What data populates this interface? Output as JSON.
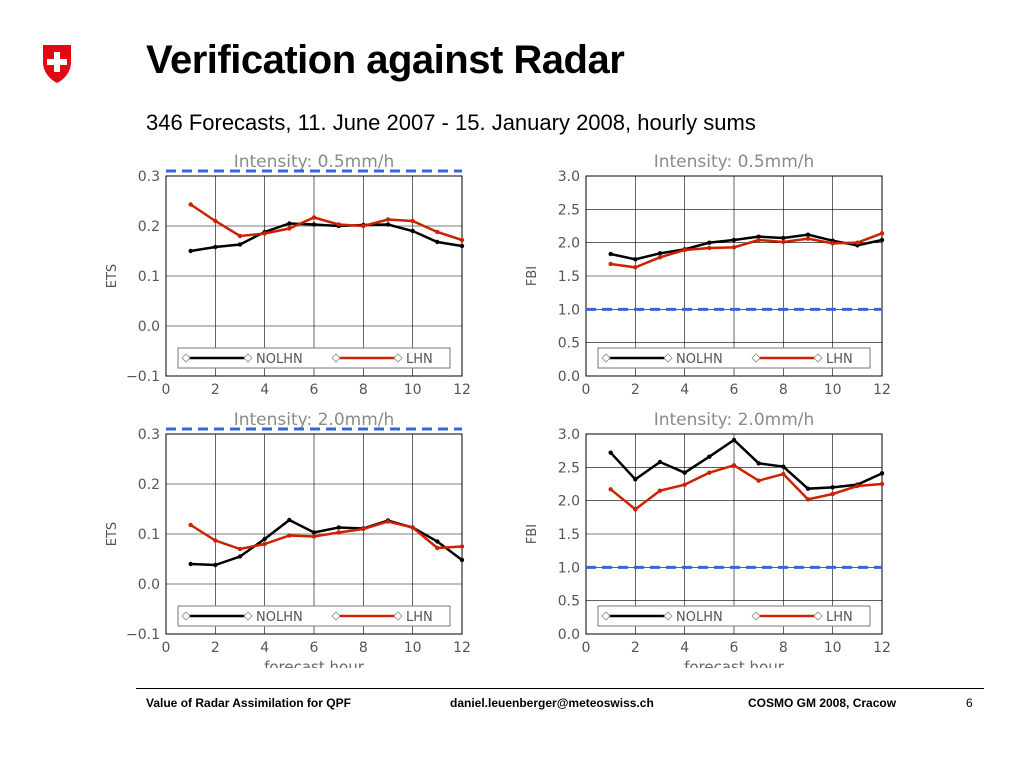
{
  "slide": {
    "title": "Verification against Radar",
    "subtitle": "346 Forecasts, 11. June 2007 - 15. January 2008, hourly sums",
    "logo_icon": "swiss-cross-shield-icon",
    "logo_color": "#e30613"
  },
  "footer": {
    "left": "Value of Radar Assimilation for QPF",
    "middle": "daniel.leuenberger@meteoswiss.ch",
    "right": "COSMO GM 2008, Cracow",
    "page": "6"
  },
  "colors": {
    "nolhn": "#000000",
    "lhn": "#cc2200",
    "reference": "#3366dd",
    "grid": "#000000"
  },
  "chart_data": [
    {
      "type": "line",
      "title": "Intensity: 0.5mm/h",
      "xlabel": "",
      "ylabel": "ETS",
      "xlim": [
        0,
        12
      ],
      "ylim": [
        -0.1,
        0.3
      ],
      "xticks": [
        0,
        2,
        4,
        6,
        8,
        10,
        12
      ],
      "yticks": [
        -0.1,
        0.0,
        0.1,
        0.2,
        0.3
      ],
      "ytick_labels": [
        "−0.1",
        "0.0",
        "0.1",
        "0.2",
        "0.3"
      ],
      "grid": true,
      "reference_line": 0.31,
      "legend": "bottom",
      "x": [
        1,
        2,
        3,
        4,
        5,
        6,
        7,
        8,
        9,
        10,
        11,
        12
      ],
      "series": [
        {
          "name": "NOLHN",
          "values": [
            0.15,
            0.158,
            0.163,
            0.188,
            0.205,
            0.203,
            0.2,
            0.202,
            0.203,
            0.19,
            0.168,
            0.16
          ]
        },
        {
          "name": "LHN",
          "values": [
            0.243,
            0.21,
            0.18,
            0.185,
            0.195,
            0.217,
            0.203,
            0.2,
            0.213,
            0.21,
            0.188,
            0.172
          ]
        }
      ]
    },
    {
      "type": "line",
      "title": "Intensity: 0.5mm/h",
      "xlabel": "",
      "ylabel": "FBI",
      "xlim": [
        0,
        12
      ],
      "ylim": [
        0.0,
        3.0
      ],
      "xticks": [
        0,
        2,
        4,
        6,
        8,
        10,
        12
      ],
      "yticks": [
        0.0,
        0.5,
        1.0,
        1.5,
        2.0,
        2.5,
        3.0
      ],
      "ytick_labels": [
        "0.0",
        "0.5",
        "1.0",
        "1.5",
        "2.0",
        "2.5",
        "3.0"
      ],
      "grid": true,
      "reference_line": 1.0,
      "legend": "bottom",
      "x": [
        1,
        2,
        3,
        4,
        5,
        6,
        7,
        8,
        9,
        10,
        11,
        12
      ],
      "series": [
        {
          "name": "NOLHN",
          "values": [
            1.83,
            1.75,
            1.84,
            1.9,
            2.0,
            2.04,
            2.09,
            2.07,
            2.12,
            2.03,
            1.96,
            2.04
          ]
        },
        {
          "name": "LHN",
          "values": [
            1.68,
            1.63,
            1.78,
            1.89,
            1.92,
            1.93,
            2.04,
            2.01,
            2.06,
            1.99,
            2.0,
            2.14
          ]
        }
      ]
    },
    {
      "type": "line",
      "title": "Intensity: 2.0mm/h",
      "xlabel": "forecast hour",
      "ylabel": "ETS",
      "xlim": [
        0,
        12
      ],
      "ylim": [
        -0.1,
        0.3
      ],
      "xticks": [
        0,
        2,
        4,
        6,
        8,
        10,
        12
      ],
      "yticks": [
        -0.1,
        0.0,
        0.1,
        0.2,
        0.3
      ],
      "ytick_labels": [
        "−0.1",
        "0.0",
        "0.1",
        "0.2",
        "0.3"
      ],
      "grid": true,
      "reference_line": 0.31,
      "legend": "bottom",
      "x": [
        1,
        2,
        3,
        4,
        5,
        6,
        7,
        8,
        9,
        10,
        11,
        12
      ],
      "series": [
        {
          "name": "NOLHN",
          "values": [
            0.04,
            0.038,
            0.055,
            0.09,
            0.128,
            0.103,
            0.113,
            0.111,
            0.127,
            0.113,
            0.085,
            0.048
          ]
        },
        {
          "name": "LHN",
          "values": [
            0.118,
            0.087,
            0.07,
            0.08,
            0.097,
            0.095,
            0.103,
            0.11,
            0.125,
            0.113,
            0.072,
            0.075
          ]
        }
      ]
    },
    {
      "type": "line",
      "title": "Intensity: 2.0mm/h",
      "xlabel": "forecast hour",
      "ylabel": "FBI",
      "xlim": [
        0,
        12
      ],
      "ylim": [
        0.0,
        3.0
      ],
      "xticks": [
        0,
        2,
        4,
        6,
        8,
        10,
        12
      ],
      "yticks": [
        0.0,
        0.5,
        1.0,
        1.5,
        2.0,
        2.5,
        3.0
      ],
      "ytick_labels": [
        "0.0",
        "0.5",
        "1.0",
        "1.5",
        "2.0",
        "2.5",
        "3.0"
      ],
      "grid": true,
      "reference_line": 1.0,
      "legend": "bottom",
      "x": [
        1,
        2,
        3,
        4,
        5,
        6,
        7,
        8,
        9,
        10,
        11,
        12
      ],
      "series": [
        {
          "name": "NOLHN",
          "values": [
            2.72,
            2.32,
            2.58,
            2.42,
            2.66,
            2.91,
            2.56,
            2.51,
            2.18,
            2.2,
            2.24,
            2.41
          ]
        },
        {
          "name": "LHN",
          "values": [
            2.17,
            1.87,
            2.15,
            2.24,
            2.42,
            2.53,
            2.3,
            2.4,
            2.02,
            2.1,
            2.22,
            2.25
          ]
        }
      ]
    }
  ]
}
